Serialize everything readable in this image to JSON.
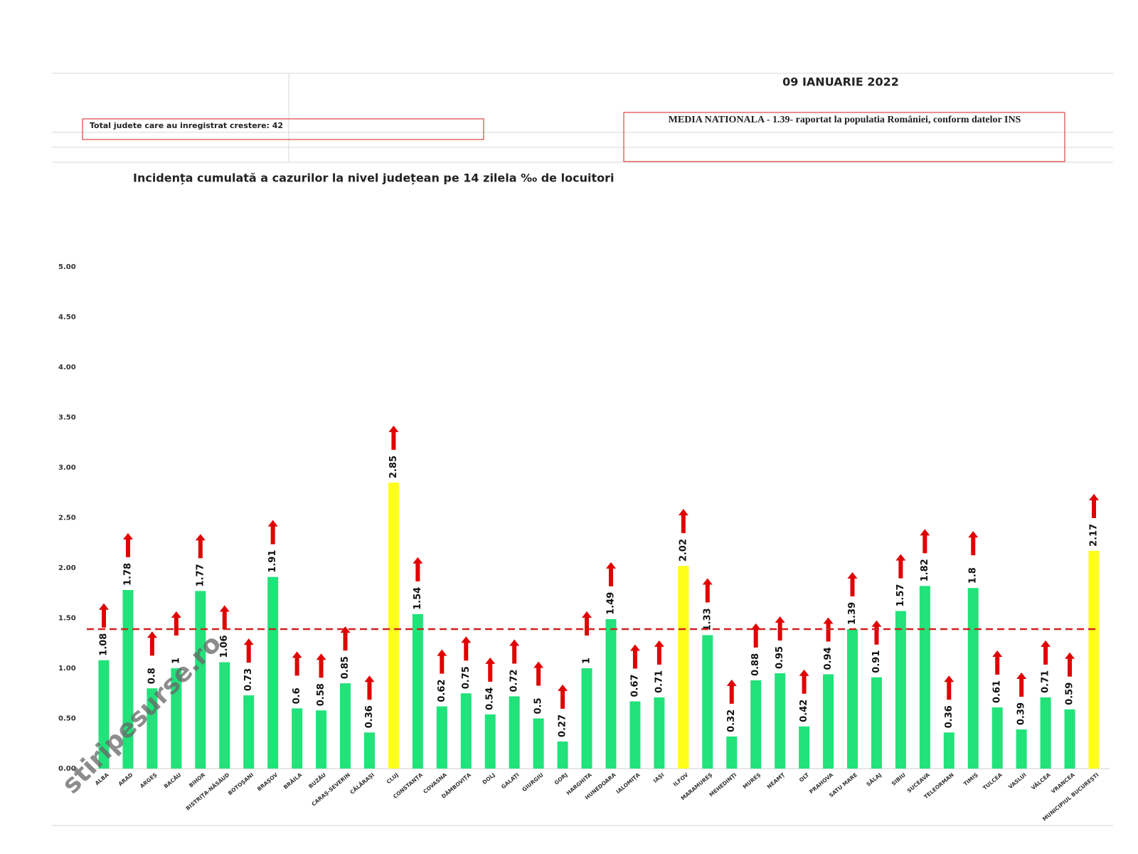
{
  "chart_data": {
    "type": "bar",
    "date": "09 IANUARIE 2022",
    "counties_note": "Total judete care au inregistrat crestere: 42",
    "national_average_note": "MEDIA NATIONALA - 1.39- raportat la populatia României, conform datelor INS",
    "title": "Incidența cumulată a cazurilor la nivel județean pe 14 zilela ‰ de locuitori",
    "watermark": "stiripesurse.ro",
    "categories": [
      "ALBA",
      "ARAD",
      "ARGEȘ",
      "BACĂU",
      "BIHOR",
      "BISTRIȚA-NĂSĂUD",
      "BOTOȘANI",
      "BRAȘOV",
      "BRĂILA",
      "BUZĂU",
      "CARAȘ-SEVERIN",
      "CĂLĂRAȘI",
      "CLUJ",
      "CONSTANȚA",
      "COVASNA",
      "DÂMBOVIȚA",
      "DOLJ",
      "GALAȚI",
      "GIURGIU",
      "GORJ",
      "HARGHITA",
      "HUNEDOARA",
      "IALOMIȚA",
      "IAȘI",
      "ILFOV",
      "MARAMUREȘ",
      "MEHEDINȚI",
      "MUREȘ",
      "NEAMȚ",
      "OLT",
      "PRAHOVA",
      "SATU MARE",
      "SĂLAJ",
      "SIBIU",
      "SUCEAVA",
      "TELEORMAN",
      "TIMIȘ",
      "TULCEA",
      "VASLUI",
      "VÂLCEA",
      "VRANCEA",
      "MUNICIPIUL BUCUREȘTI"
    ],
    "values": [
      1.08,
      1.78,
      0.8,
      1,
      1.77,
      1.06,
      0.73,
      1.91,
      0.6,
      0.58,
      0.85,
      0.36,
      2.85,
      1.54,
      0.62,
      0.75,
      0.54,
      0.72,
      0.5,
      0.27,
      1,
      1.49,
      0.67,
      0.71,
      2.02,
      1.33,
      0.32,
      0.88,
      0.95,
      0.42,
      0.94,
      1.39,
      0.91,
      1.57,
      1.82,
      0.36,
      1.8,
      0.61,
      0.39,
      0.71,
      0.59,
      2.17
    ],
    "colors": [
      "#22e27a",
      "#22e27a",
      "#22e27a",
      "#22e27a",
      "#22e27a",
      "#22e27a",
      "#22e27a",
      "#22e27a",
      "#22e27a",
      "#22e27a",
      "#22e27a",
      "#22e27a",
      "#ffff1a",
      "#22e27a",
      "#22e27a",
      "#22e27a",
      "#22e27a",
      "#22e27a",
      "#22e27a",
      "#22e27a",
      "#22e27a",
      "#22e27a",
      "#22e27a",
      "#22e27a",
      "#ffff1a",
      "#22e27a",
      "#22e27a",
      "#22e27a",
      "#22e27a",
      "#22e27a",
      "#22e27a",
      "#22e27a",
      "#22e27a",
      "#22e27a",
      "#22e27a",
      "#22e27a",
      "#22e27a",
      "#22e27a",
      "#22e27a",
      "#22e27a",
      "#22e27a",
      "#ffff1a"
    ],
    "average": 1.39,
    "average_color": "#d42020",
    "arrow_color": "#e00000",
    "ylim": [
      0,
      5
    ],
    "yticks": [
      {
        "value": 0,
        "label": "0.00"
      },
      {
        "value": 0.5,
        "label": "0.50"
      },
      {
        "value": 1,
        "label": "1.00"
      },
      {
        "value": 1.5,
        "label": "1.50"
      },
      {
        "value": 2,
        "label": "2.00"
      },
      {
        "value": 2.5,
        "label": "2.50"
      },
      {
        "value": 3,
        "label": "3.00"
      },
      {
        "value": 3.5,
        "label": "3.50"
      },
      {
        "value": 4,
        "label": "4.00"
      },
      {
        "value": 4.5,
        "label": "4.50"
      },
      {
        "value": 5,
        "label": "5.00"
      }
    ]
  }
}
